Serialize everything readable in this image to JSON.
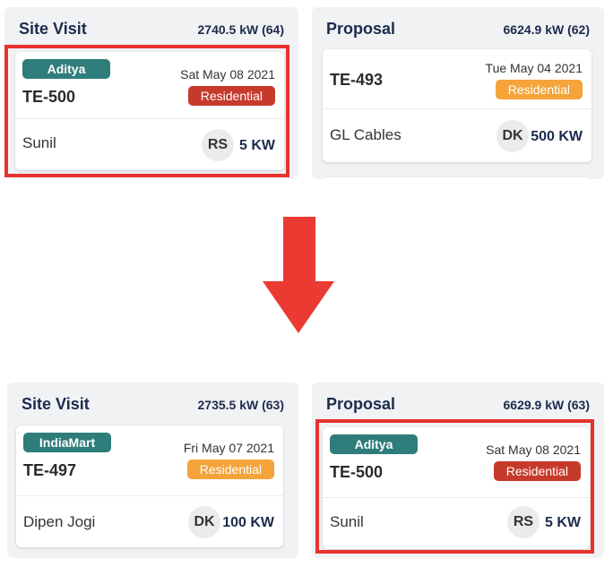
{
  "colors": {
    "highlight": "#e8322f",
    "source_badge": "#2f7d7a",
    "residential_red": "#c63a2b",
    "residential_orange": "#f4a43a",
    "heading": "#1c2b4d"
  },
  "before": {
    "site_visit": {
      "title": "Site Visit",
      "total": "2740.5 kW (64)",
      "card": {
        "source": "Aditya",
        "date": "Sat May 08 2021",
        "code": "TE-500",
        "type": "Residential",
        "customer": "Sunil",
        "initials": "RS",
        "capacity": "5 KW"
      }
    },
    "proposal": {
      "title": "Proposal",
      "total": "6624.9 kW (62)",
      "card": {
        "source": "",
        "date": "Tue May 04 2021",
        "code": "TE-493",
        "type": "Residential",
        "customer": "GL Cables",
        "initials": "DK",
        "capacity": "500 KW"
      }
    }
  },
  "arrow": "arrow-down-icon",
  "after": {
    "site_visit": {
      "title": "Site Visit",
      "total": "2735.5 kW (63)",
      "card": {
        "source": "IndiaMart",
        "date": "Fri May 07 2021",
        "code": "TE-497",
        "type": "Residential",
        "customer": "Dipen Jogi",
        "initials": "DK",
        "capacity": "100 KW"
      }
    },
    "proposal": {
      "title": "Proposal",
      "total": "6629.9 kW (63)",
      "card": {
        "source": "Aditya",
        "date": "Sat May 08 2021",
        "code": "TE-500",
        "type": "Residential",
        "customer": "Sunil",
        "initials": "RS",
        "capacity": "5 KW"
      }
    }
  }
}
